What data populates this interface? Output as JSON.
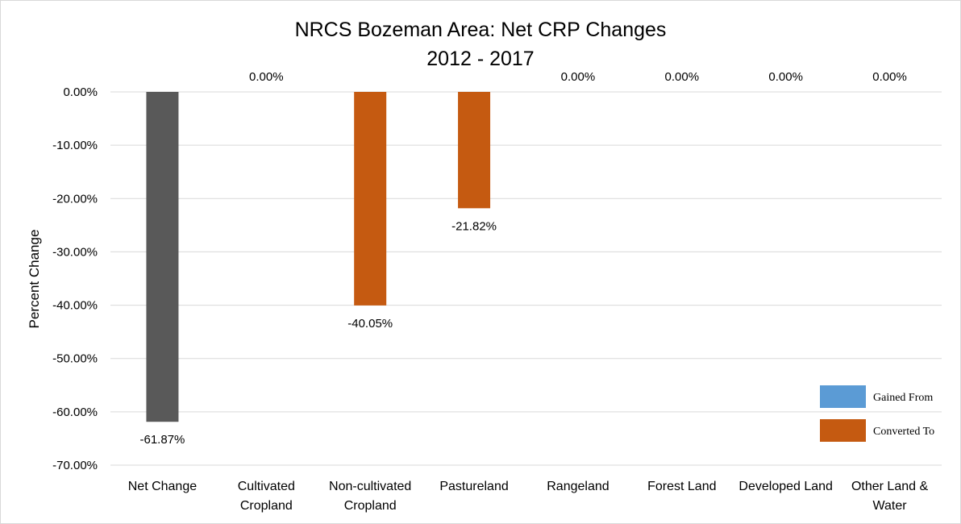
{
  "chart_data": {
    "type": "bar",
    "title": [
      "NRCS Bozeman Area: Net CRP Changes",
      "2012 - 2017"
    ],
    "ylabel": "Percent Change",
    "xlabel": "",
    "ylim": [
      -70,
      0
    ],
    "ytick_step": 10,
    "ytick_labels": [
      "0.00%",
      "-10.00%",
      "-20.00%",
      "-30.00%",
      "-40.00%",
      "-50.00%",
      "-60.00%",
      "-70.00%"
    ],
    "grid": true,
    "legend_position": "bottom-right",
    "categories": [
      [
        "Net Change"
      ],
      [
        "Cultivated",
        "Cropland"
      ],
      [
        "Non-cultivated",
        "Cropland"
      ],
      [
        "Pastureland"
      ],
      [
        "Rangeland"
      ],
      [
        "Forest Land"
      ],
      [
        "Developed Land"
      ],
      [
        "Other Land &",
        "Water"
      ]
    ],
    "values": [
      -61.87,
      0.0,
      -40.05,
      -21.82,
      0.0,
      0.0,
      0.0,
      0.0
    ],
    "data_labels": [
      "-61.87%",
      "0.00%",
      "-40.05%",
      "-21.82%",
      "0.00%",
      "0.00%",
      "0.00%",
      "0.00%"
    ],
    "bar_colors": [
      "#595959",
      "#c55a11",
      "#c55a11",
      "#c55a11",
      "#c55a11",
      "#c55a11",
      "#c55a11",
      "#c55a11"
    ],
    "series": [
      {
        "name": "Gained From",
        "color": "#5b9bd5"
      },
      {
        "name": "Converted To",
        "color": "#c55a11"
      }
    ],
    "gridline_color": "#d9d9d9"
  }
}
